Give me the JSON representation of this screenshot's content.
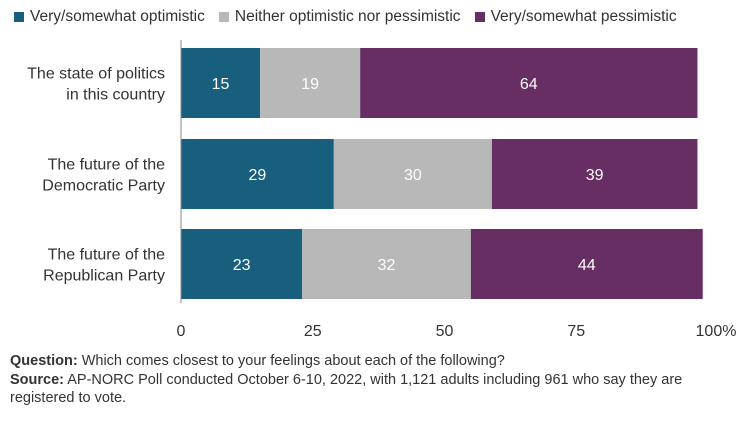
{
  "chart_data": {
    "type": "bar",
    "orientation": "horizontal",
    "stacked": true,
    "categories": [
      [
        "The state of politics",
        "in this country"
      ],
      [
        "The future of the",
        "Democratic Party"
      ],
      [
        "The future of the",
        "Republican Party"
      ]
    ],
    "series": [
      {
        "name": "Very/somewhat optimistic",
        "values": [
          15,
          29,
          23
        ],
        "color": "#175f7d"
      },
      {
        "name": "Neither optimistic nor pessimistic",
        "values": [
          19,
          30,
          32
        ],
        "color": "#b8b8b8"
      },
      {
        "name": "Very/somewhat pessimistic",
        "values": [
          64,
          39,
          44
        ],
        "color": "#662e63"
      }
    ],
    "xlim": [
      0,
      100
    ],
    "xticks": [
      0,
      25,
      50,
      75,
      100
    ],
    "xtick_labels": [
      "0",
      "25",
      "50",
      "75",
      "100%"
    ],
    "legend_position": "top-left",
    "grid": false
  },
  "footnote": {
    "question_label": "Question:",
    "question_text": " Which comes closest to your feelings about each of the following?",
    "source_label": "Source:",
    "source_text": " AP-NORC Poll conducted October 6-10, 2022, with 1,121 adults including 961 who say they are registered to vote."
  }
}
